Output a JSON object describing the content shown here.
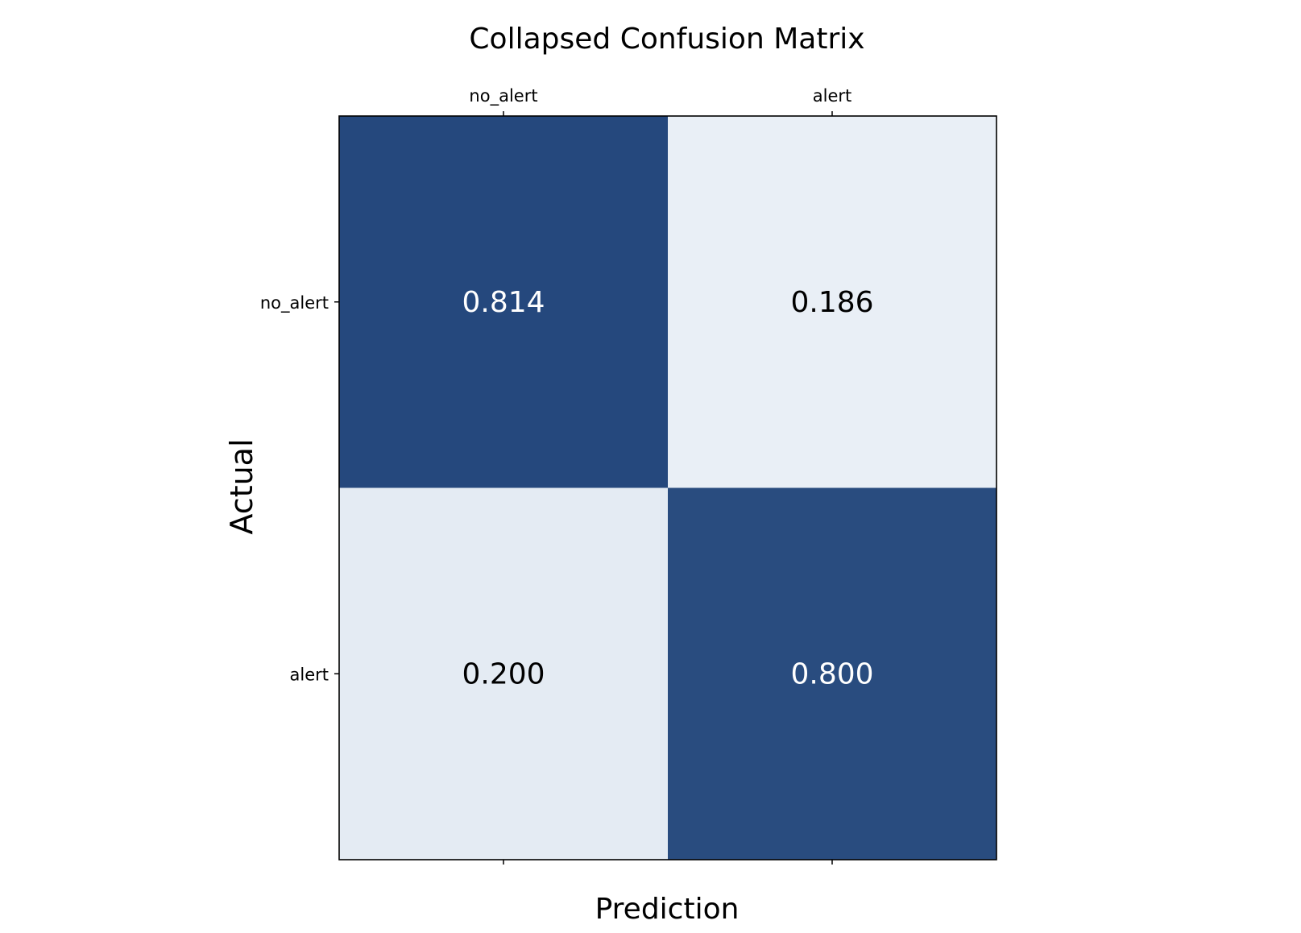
{
  "chart_data": {
    "type": "heatmap",
    "title": "Collapsed Confusion Matrix",
    "xlabel": "Prediction",
    "ylabel": "Actual",
    "x_categories": [
      "no_alert",
      "alert"
    ],
    "y_categories": [
      "no_alert",
      "alert"
    ],
    "values": [
      [
        0.814,
        0.186
      ],
      [
        0.2,
        0.8
      ]
    ],
    "cell_labels": [
      [
        "0.814",
        "0.186"
      ],
      [
        "0.200",
        "0.800"
      ]
    ],
    "x_tick_position": "top",
    "colormap": {
      "low": "#f7fbff",
      "high": "#08306b"
    },
    "text_colors": {
      "on_dark": "#ffffff",
      "on_light": "#000000"
    }
  }
}
